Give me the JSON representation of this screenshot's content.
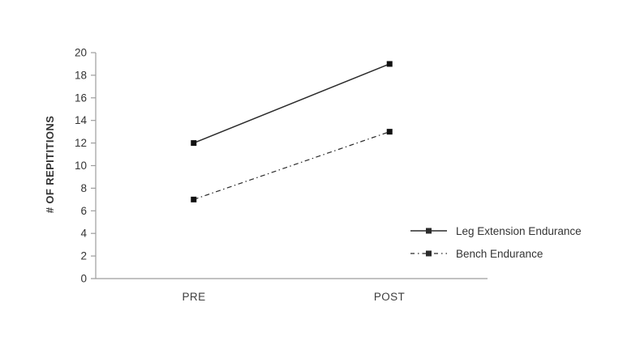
{
  "chart_data": {
    "type": "line",
    "categories": [
      "PRE",
      "POST"
    ],
    "series": [
      {
        "name": "Leg Extension Endurance",
        "values": [
          12,
          19
        ],
        "line_style": "solid",
        "marker": "square",
        "color": "#2b2b2b",
        "marker_color": "#111111"
      },
      {
        "name": "Bench Endurance",
        "values": [
          7,
          13
        ],
        "line_style": "dash-dot",
        "marker": "square",
        "color": "#2b2b2b",
        "marker_color": "#111111"
      }
    ],
    "title": "",
    "xlabel": "",
    "ylabel": "# OF REPITITIONS",
    "ylim": [
      0,
      20
    ],
    "yticks": [
      0,
      2,
      4,
      6,
      8,
      10,
      12,
      14,
      16,
      18,
      20
    ],
    "grid": false,
    "legend_position": "right-lower",
    "axis_color": "#9d9d9d",
    "text_color": "#333333",
    "background_color": "#ffffff"
  }
}
